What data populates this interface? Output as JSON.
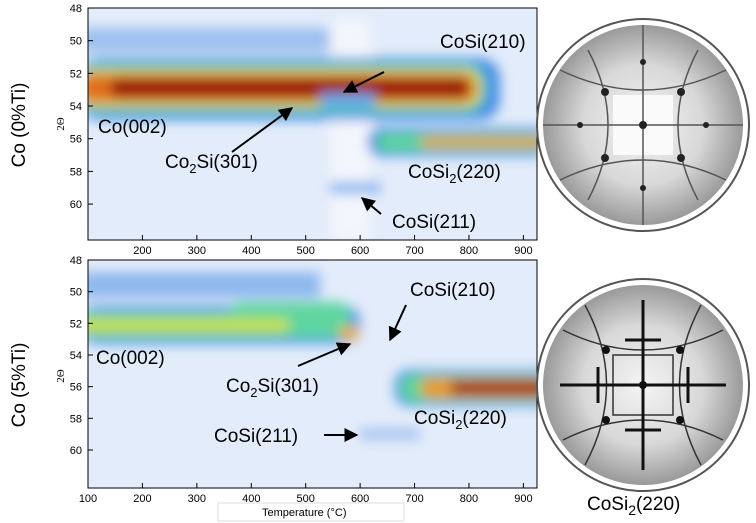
{
  "panels": [
    {
      "row_label": "Co (0%Ti)",
      "y_axis_label": "2Θ",
      "xlim": [
        100,
        925
      ],
      "ylim": [
        48,
        62.2
      ],
      "xticks": [
        200,
        300,
        400,
        500,
        600,
        700,
        800,
        900
      ],
      "yticks": [
        48,
        50,
        52,
        54,
        56,
        58,
        60
      ],
      "annotations": [
        {
          "base": "CoSi(210)"
        },
        {
          "base": "Co(002)"
        },
        {
          "base": "Co",
          "sub": "2",
          "rest": "Si(301)"
        },
        {
          "base": "CoSi",
          "sub": "2",
          "rest": "(220)"
        },
        {
          "base": "CoSi(211)"
        }
      ]
    },
    {
      "row_label": "Co (5%Ti)",
      "y_axis_label": "2Θ",
      "xlim": [
        100,
        925
      ],
      "ylim": [
        48,
        62.4
      ],
      "xticks": [
        100,
        200,
        300,
        400,
        500,
        600,
        700,
        800,
        900
      ],
      "yticks": [
        48,
        50,
        52,
        54,
        56,
        58,
        60
      ],
      "annotations": [
        {
          "base": "CoSi(210)"
        },
        {
          "base": "Co(002)"
        },
        {
          "base": "Co",
          "sub": "2",
          "rest": "Si(301)"
        },
        {
          "base": "CoSi",
          "sub": "2",
          "rest": "(220)"
        },
        {
          "base": "CoSi(211)"
        }
      ]
    }
  ],
  "x_axis_label": "Temperature (°C)",
  "pole_figure_caption": {
    "base": "CoSi",
    "sub": "2",
    "rest": "(220)"
  }
}
